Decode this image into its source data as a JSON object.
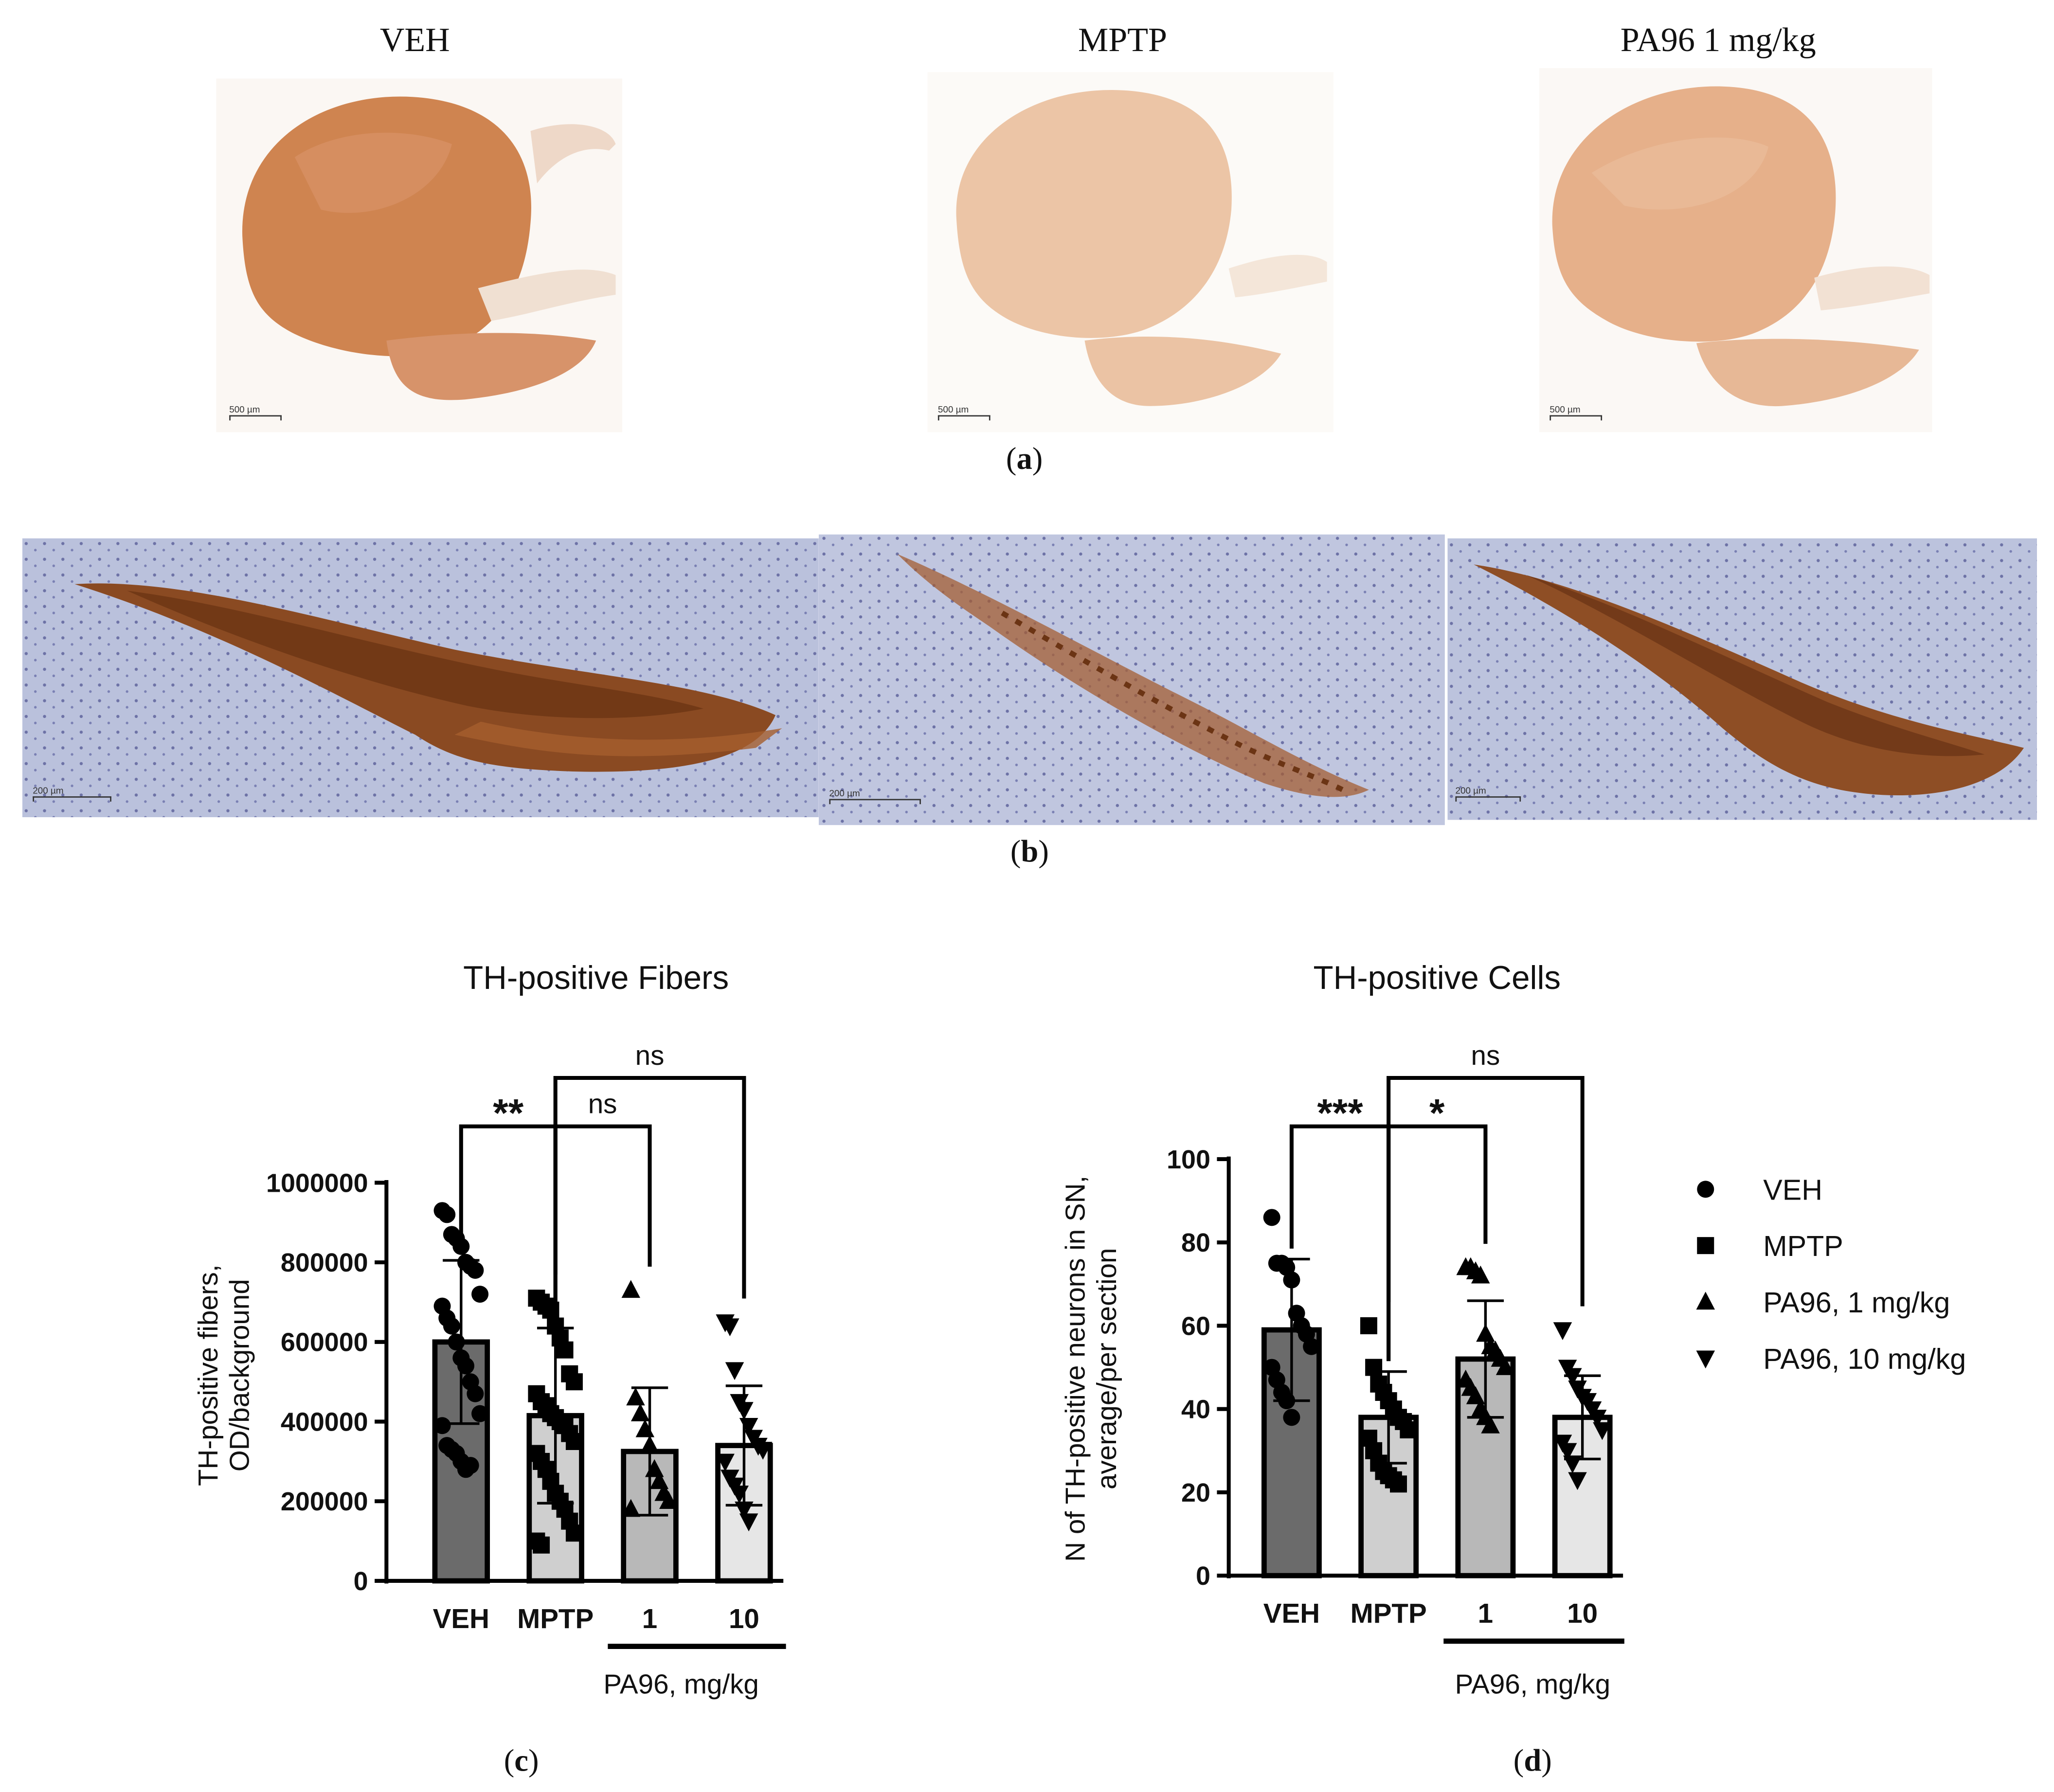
{
  "panel_a": {
    "titles": [
      "VEH",
      "MPTP",
      "PA96 1 mg/kg"
    ],
    "scale_labels": [
      "500 µm",
      "500 µm",
      "500 µm"
    ],
    "caption_letter": "a"
  },
  "panel_b": {
    "scale_labels": [
      "200 µm",
      "200 µm",
      "200 µm"
    ],
    "caption_letter": "b"
  },
  "chart_data": [
    {
      "type": "bar",
      "title": "TH-positive Fibers",
      "ylabel_line1": "TH-positive fibers,",
      "ylabel_line2": "OD/background",
      "categories": [
        "VEH",
        "MPTP",
        "1",
        "10"
      ],
      "group_label": "PA96, mg/kg",
      "values": [
        600000,
        415000,
        325000,
        340000
      ],
      "sd": [
        205000,
        220000,
        160000,
        150000
      ],
      "ylim": [
        0,
        1000000
      ],
      "yticks": [
        "0",
        "200000",
        "400000",
        "600000",
        "800000",
        "1000000"
      ],
      "colors": [
        "#6b6b6b",
        "#cfcfcf",
        "#b8b8b8",
        "#e6e6e6"
      ],
      "points": [
        [
          930000,
          920000,
          870000,
          860000,
          840000,
          800000,
          790000,
          780000,
          720000,
          690000,
          660000,
          640000,
          600000,
          560000,
          540000,
          500000,
          470000,
          420000,
          390000,
          340000,
          330000,
          320000,
          300000,
          280000,
          290000
        ],
        [
          710000,
          700000,
          690000,
          680000,
          640000,
          610000,
          580000,
          520000,
          500000,
          470000,
          450000,
          440000,
          420000,
          410000,
          400000,
          390000,
          370000,
          350000,
          320000,
          300000,
          280000,
          250000,
          220000,
          200000,
          180000,
          150000,
          120000,
          100000,
          90000
        ],
        [
          730000,
          460000,
          420000,
          380000,
          340000,
          280000,
          250000,
          220000,
          200000,
          180000
        ],
        [
          650000,
          640000,
          530000,
          450000,
          430000,
          390000,
          360000,
          340000,
          330000,
          300000,
          260000,
          240000,
          220000,
          180000,
          150000
        ]
      ],
      "significance": [
        {
          "label": "**",
          "from": 0,
          "to": 1
        },
        {
          "label": "ns",
          "from": 1,
          "to": 2
        },
        {
          "label": "ns",
          "from": 1,
          "to": 3
        }
      ],
      "caption_letter": "c"
    },
    {
      "type": "bar",
      "title": "TH-positive Cells",
      "ylabel_line1": "N of TH-positive neurons in SN,",
      "ylabel_line2": "average/per section",
      "categories": [
        "VEH",
        "MPTP",
        "1",
        "10"
      ],
      "group_label": "PA96, mg/kg",
      "values": [
        59,
        38,
        52,
        38
      ],
      "sd": [
        17,
        11,
        14,
        10
      ],
      "ylim": [
        0,
        100
      ],
      "yticks": [
        "0",
        "20",
        "40",
        "60",
        "80",
        "100"
      ],
      "colors": [
        "#6b6b6b",
        "#cfcfcf",
        "#b8b8b8",
        "#e6e6e6"
      ],
      "points": [
        [
          86,
          75,
          75,
          74,
          71,
          63,
          60,
          58,
          55,
          50,
          47,
          44,
          42,
          38
        ],
        [
          60,
          50,
          46,
          44,
          42,
          40,
          38,
          37,
          35,
          33,
          30,
          27,
          25,
          24,
          23,
          22
        ],
        [
          74,
          74,
          73,
          72,
          58,
          55,
          54,
          52,
          50,
          47,
          45,
          43,
          40,
          38,
          36
        ],
        [
          59,
          50,
          48,
          45,
          43,
          42,
          40,
          38,
          35,
          32,
          30,
          27,
          23
        ]
      ],
      "significance": [
        {
          "label": "***",
          "from": 0,
          "to": 1
        },
        {
          "label": "*",
          "from": 1,
          "to": 2
        },
        {
          "label": "ns",
          "from": 1,
          "to": 3
        }
      ],
      "caption_letter": "d"
    }
  ],
  "legend": {
    "items": [
      {
        "label": "VEH",
        "marker": "circle"
      },
      {
        "label": "MPTP",
        "marker": "square"
      },
      {
        "label": "PA96, 1 mg/kg",
        "marker": "triangle-up"
      },
      {
        "label": "PA96, 10 mg/kg",
        "marker": "triangle-down"
      }
    ]
  }
}
